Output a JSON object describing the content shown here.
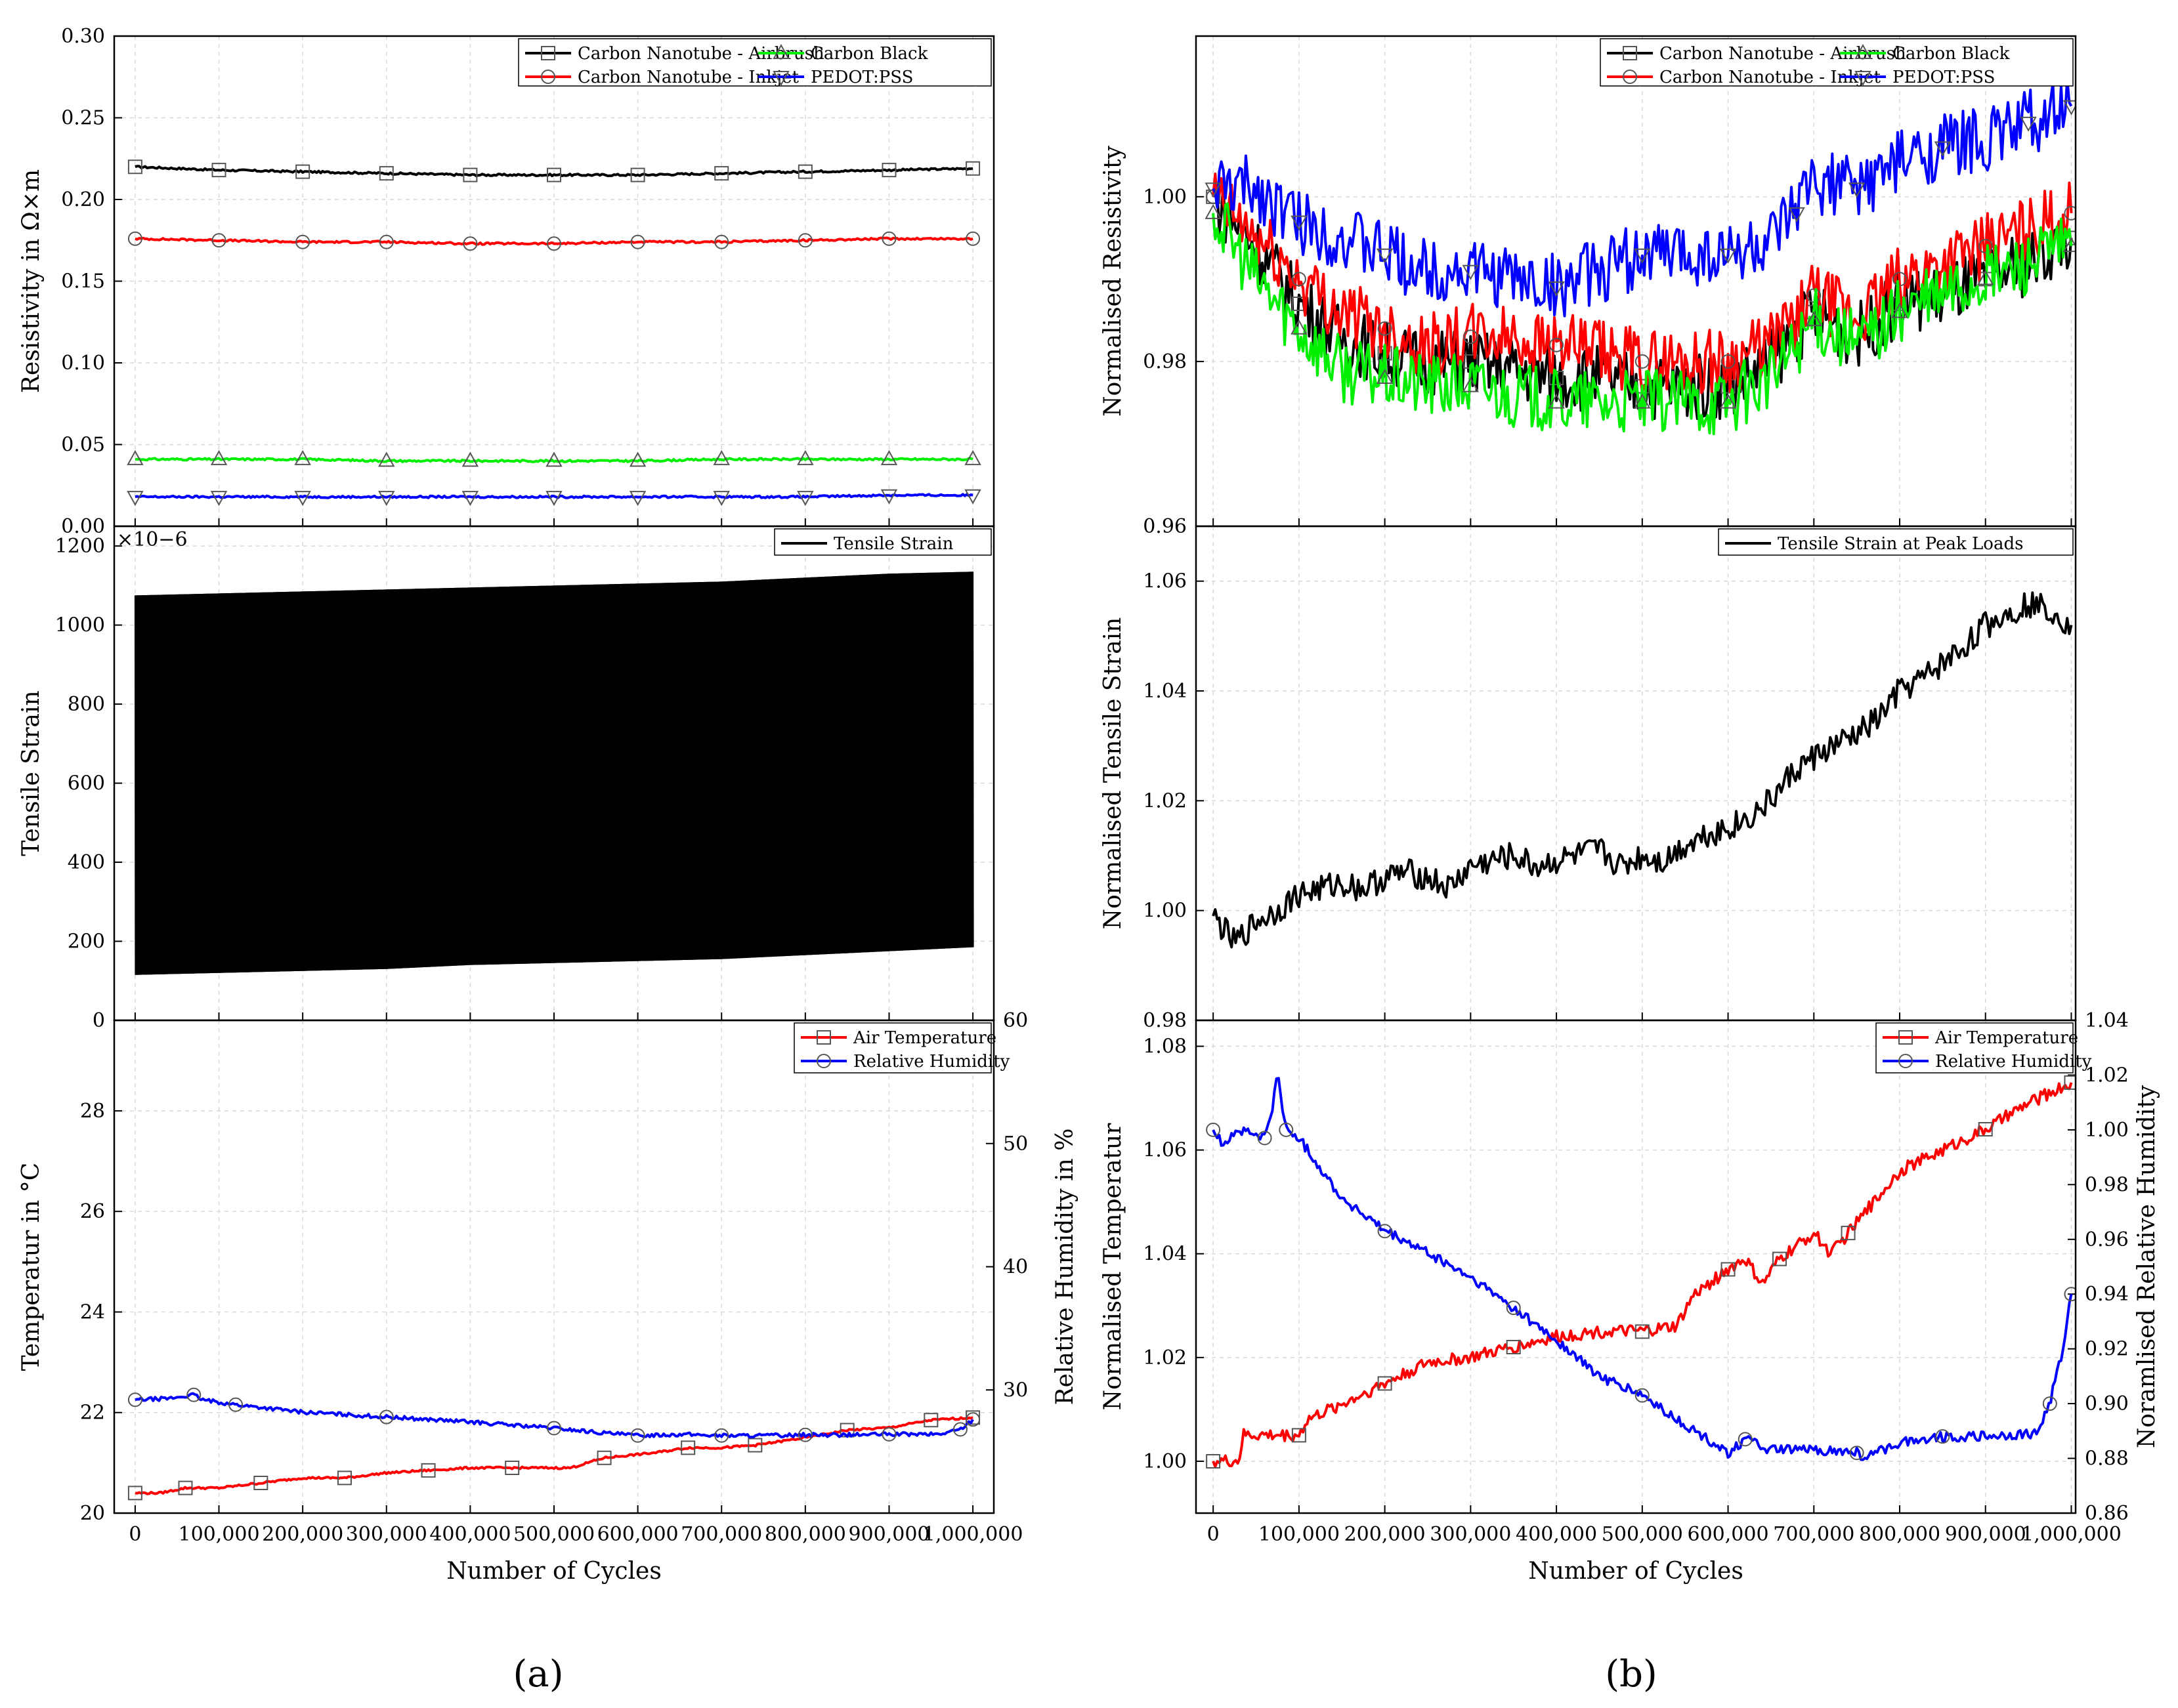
{
  "colors": {
    "black": "#000000",
    "red": "#ff0000",
    "green": "#00ee00",
    "blue": "#0000ff",
    "grid": "#d9d9d9"
  },
  "chart_data": [
    {
      "id": "a1",
      "type": "line",
      "ylabel": "Resistivity in Ω×m",
      "ylim": [
        0,
        0.3
      ],
      "yticks": [
        "0.00",
        "0.05",
        "0.10",
        "0.15",
        "0.20",
        "0.25",
        "0.30"
      ],
      "xlim": [
        -25000,
        1025000
      ],
      "grid": true,
      "legend_position": "top-right",
      "series": [
        {
          "name": "Carbon Nanotube - Airbrush",
          "color": "#000000",
          "marker": "square",
          "x": [
            0,
            100000,
            200000,
            300000,
            400000,
            500000,
            600000,
            700000,
            800000,
            900000,
            1000000
          ],
          "y": [
            0.22,
            0.218,
            0.217,
            0.216,
            0.215,
            0.215,
            0.215,
            0.216,
            0.217,
            0.218,
            0.219
          ]
        },
        {
          "name": "Carbon Nanotube - Inkjet",
          "color": "#ff0000",
          "marker": "circle",
          "x": [
            0,
            100000,
            200000,
            300000,
            400000,
            500000,
            600000,
            700000,
            800000,
            900000,
            1000000
          ],
          "y": [
            0.176,
            0.175,
            0.174,
            0.174,
            0.173,
            0.173,
            0.174,
            0.174,
            0.175,
            0.176,
            0.176
          ]
        },
        {
          "name": "Carbon Black",
          "color": "#00ee00",
          "marker": "triangle-up",
          "x": [
            0,
            100000,
            200000,
            300000,
            400000,
            500000,
            600000,
            700000,
            800000,
            900000,
            1000000
          ],
          "y": [
            0.041,
            0.041,
            0.041,
            0.04,
            0.04,
            0.04,
            0.04,
            0.041,
            0.041,
            0.041,
            0.041
          ]
        },
        {
          "name": "PEDOT:PSS",
          "color": "#0000ff",
          "marker": "triangle-down",
          "x": [
            0,
            100000,
            200000,
            300000,
            400000,
            500000,
            600000,
            700000,
            800000,
            900000,
            1000000
          ],
          "y": [
            0.018,
            0.018,
            0.018,
            0.018,
            0.018,
            0.018,
            0.018,
            0.018,
            0.018,
            0.019,
            0.019
          ]
        }
      ]
    },
    {
      "id": "a2",
      "type": "area",
      "ylabel": "Tensile Strain",
      "multiplier": "×10−6",
      "ylim": [
        0,
        1250
      ],
      "yticks": [
        "0",
        "200",
        "400",
        "600",
        "800",
        "1000",
        "1200"
      ],
      "xlim": [
        -25000,
        1025000
      ],
      "grid": true,
      "legend_position": "top-right",
      "series": [
        {
          "name": "Tensile Strain",
          "color": "#000000",
          "x": [
            0,
            100000,
            200000,
            300000,
            400000,
            500000,
            600000,
            700000,
            800000,
            900000,
            1000000
          ],
          "upper": [
            1075,
            1080,
            1085,
            1090,
            1095,
            1100,
            1105,
            1110,
            1120,
            1130,
            1135
          ],
          "lower": [
            115,
            120,
            125,
            130,
            140,
            145,
            150,
            155,
            165,
            175,
            185
          ]
        }
      ]
    },
    {
      "id": "a3",
      "type": "line",
      "xlabel": "Number of Cycles",
      "ylabel": "Temperatur in °C",
      "ylabel_right": "Relative Humidity in %",
      "ylim": [
        20,
        29.8
      ],
      "yticks": [
        "20",
        "22",
        "24",
        "26",
        "28"
      ],
      "ylim_right": [
        20,
        60
      ],
      "yticks_right": [
        "30",
        "40",
        "50",
        "60"
      ],
      "xlim": [
        -25000,
        1025000
      ],
      "xticks": [
        "0",
        "100,000",
        "200,000",
        "300,000",
        "400,000",
        "500,000",
        "600,000",
        "700,000",
        "800,000",
        "900,000",
        "1,000,000"
      ],
      "grid": true,
      "legend_position": "top-right",
      "series": [
        {
          "name": "Air Temperature",
          "color": "#ff0000",
          "marker": "square",
          "axis": "left",
          "x": [
            0,
            30000,
            60000,
            100000,
            150000,
            200000,
            250000,
            300000,
            350000,
            400000,
            450000,
            520000,
            560000,
            620000,
            660000,
            700000,
            740000,
            800000,
            850000,
            900000,
            950000,
            1000000
          ],
          "y": [
            20.4,
            20.4,
            20.5,
            20.5,
            20.6,
            20.7,
            20.7,
            20.8,
            20.85,
            20.9,
            20.9,
            20.9,
            21.1,
            21.2,
            21.3,
            21.3,
            21.35,
            21.5,
            21.65,
            21.7,
            21.85,
            21.9
          ]
        },
        {
          "name": "Relative Humidity",
          "color": "#0000ff",
          "marker": "circle",
          "axis": "right",
          "x": [
            0,
            40000,
            70000,
            80000,
            120000,
            200000,
            300000,
            400000,
            500000,
            560000,
            600000,
            650000,
            700000,
            750000,
            800000,
            850000,
            900000,
            960000,
            985000,
            1000000
          ],
          "y": [
            29.2,
            29.3,
            29.6,
            29.2,
            28.8,
            28.2,
            27.8,
            27.4,
            26.9,
            26.5,
            26.3,
            26.4,
            26.3,
            26.3,
            26.35,
            26.35,
            26.4,
            26.4,
            26.8,
            27.6
          ]
        }
      ]
    },
    {
      "id": "b1",
      "type": "line",
      "ylabel": "Normalised Resistivity",
      "ylim": [
        0.96,
        1.0195
      ],
      "yticks": [
        "0.96",
        "0.98",
        "1.00"
      ],
      "xlim": [
        -20000,
        1005000
      ],
      "grid": true,
      "legend_position": "top-right",
      "series": [
        {
          "name": "Carbon Nanotube - Airbrush",
          "color": "#000000",
          "marker": "square",
          "x": [
            0,
            50000,
            100000,
            150000,
            200000,
            250000,
            300000,
            350000,
            400000,
            450000,
            500000,
            550000,
            600000,
            650000,
            700000,
            750000,
            800000,
            850000,
            900000,
            950000,
            1000000
          ],
          "y": [
            1.0,
            0.994,
            0.987,
            0.983,
            0.981,
            0.98,
            0.98,
            0.979,
            0.978,
            0.978,
            0.977,
            0.977,
            0.977,
            0.98,
            0.986,
            0.983,
            0.987,
            0.988,
            0.99,
            0.992,
            0.995
          ]
        },
        {
          "name": "Carbon Nanotube - Inkjet",
          "color": "#ff0000",
          "marker": "circle",
          "x": [
            0,
            50000,
            100000,
            150000,
            200000,
            250000,
            300000,
            350000,
            400000,
            450000,
            500000,
            550000,
            600000,
            650000,
            700000,
            750000,
            800000,
            850000,
            900000,
            950000,
            1000000
          ],
          "y": [
            1.0,
            0.995,
            0.99,
            0.986,
            0.984,
            0.982,
            0.983,
            0.983,
            0.982,
            0.981,
            0.98,
            0.98,
            0.98,
            0.982,
            0.988,
            0.985,
            0.99,
            0.992,
            0.994,
            0.996,
            0.998
          ]
        },
        {
          "name": "Carbon Black",
          "color": "#00ee00",
          "marker": "triangle-up",
          "x": [
            0,
            50000,
            100000,
            150000,
            200000,
            250000,
            300000,
            350000,
            400000,
            450000,
            500000,
            550000,
            600000,
            650000,
            700000,
            750000,
            800000,
            850000,
            900000,
            950000,
            1000000
          ],
          "y": [
            0.998,
            0.99,
            0.984,
            0.979,
            0.978,
            0.977,
            0.977,
            0.976,
            0.975,
            0.975,
            0.975,
            0.975,
            0.975,
            0.978,
            0.985,
            0.982,
            0.986,
            0.988,
            0.99,
            0.992,
            0.994
          ]
        },
        {
          "name": "PEDOT:PSS",
          "color": "#0000ff",
          "marker": "triangle-down",
          "x": [
            0,
            50000,
            100000,
            150000,
            200000,
            250000,
            300000,
            350000,
            400000,
            450000,
            500000,
            550000,
            600000,
            650000,
            680000,
            700000,
            750000,
            800000,
            850000,
            900000,
            950000,
            1000000
          ],
          "y": [
            1.001,
            1.001,
            0.997,
            0.995,
            0.993,
            0.991,
            0.991,
            0.99,
            0.989,
            0.991,
            0.993,
            0.993,
            0.993,
            0.994,
            0.998,
            1.002,
            1.001,
            1.004,
            1.006,
            1.007,
            1.009,
            1.011
          ]
        }
      ]
    },
    {
      "id": "b2",
      "type": "line",
      "ylabel": "Normalised Tensile Strain",
      "ylim": [
        0.98,
        1.07
      ],
      "yticks": [
        "0.98",
        "1.00",
        "1.02",
        "1.04",
        "1.06"
      ],
      "xlim": [
        -20000,
        1005000
      ],
      "grid": true,
      "legend_position": "top-right",
      "series": [
        {
          "name": "Tensile Strain at Peak Loads",
          "color": "#000000",
          "x": [
            0,
            25000,
            50000,
            75000,
            100000,
            125000,
            150000,
            175000,
            200000,
            225000,
            250000,
            275000,
            300000,
            325000,
            350000,
            375000,
            400000,
            425000,
            450000,
            475000,
            500000,
            525000,
            550000,
            575000,
            600000,
            625000,
            650000,
            675000,
            700000,
            725000,
            750000,
            775000,
            800000,
            825000,
            850000,
            875000,
            900000,
            925000,
            950000,
            975000,
            1000000
          ],
          "y": [
            0.999,
            0.994,
            0.998,
            1.0,
            1.003,
            1.004,
            1.005,
            1.004,
            1.006,
            1.007,
            1.006,
            1.004,
            1.008,
            1.009,
            1.01,
            1.008,
            1.009,
            1.01,
            1.011,
            1.008,
            1.01,
            1.009,
            1.012,
            1.014,
            1.015,
            1.017,
            1.02,
            1.025,
            1.028,
            1.03,
            1.032,
            1.035,
            1.04,
            1.042,
            1.045,
            1.048,
            1.052,
            1.054,
            1.056,
            1.055,
            1.052
          ]
        }
      ]
    },
    {
      "id": "b3",
      "type": "line",
      "xlabel": "Number of Cycles",
      "ylabel": "Normalised Temperatur",
      "ylabel_right": "Noramlised Relative Humidity",
      "ylim": [
        0.99,
        1.085
      ],
      "yticks": [
        "1.00",
        "1.02",
        "1.04",
        "1.06",
        "1.08"
      ],
      "ylim_right": [
        0.86,
        1.04
      ],
      "yticks_right": [
        "0.86",
        "0.88",
        "0.90",
        "0.92",
        "0.94",
        "0.96",
        "0.98",
        "1.00",
        "1.02",
        "1.04"
      ],
      "xlim": [
        -20000,
        1005000
      ],
      "xticks": [
        "0",
        "100,000",
        "200,000",
        "300,000",
        "400,000",
        "500,000",
        "600,000",
        "700,000",
        "800,000",
        "900,000",
        "1,000,000"
      ],
      "grid": true,
      "legend_position": "top-right",
      "series": [
        {
          "name": "Air Temperature",
          "color": "#ff0000",
          "marker": "square",
          "axis": "left",
          "x": [
            0,
            30000,
            35000,
            100000,
            110000,
            150000,
            200000,
            250000,
            300000,
            350000,
            400000,
            450000,
            500000,
            540000,
            560000,
            600000,
            620000,
            640000,
            660000,
            700000,
            720000,
            740000,
            800000,
            850000,
            900000,
            950000,
            1000000
          ],
          "y": [
            1.0,
            1.0,
            1.005,
            1.005,
            1.008,
            1.011,
            1.015,
            1.019,
            1.02,
            1.022,
            1.024,
            1.025,
            1.025,
            1.026,
            1.032,
            1.037,
            1.039,
            1.034,
            1.039,
            1.044,
            1.04,
            1.044,
            1.056,
            1.06,
            1.064,
            1.069,
            1.073
          ]
        },
        {
          "name": "Relative Humidity",
          "color": "#0000ff",
          "marker": "circle",
          "axis": "right",
          "x": [
            0,
            10000,
            30000,
            60000,
            70000,
            75000,
            85000,
            100000,
            150000,
            200000,
            250000,
            300000,
            350000,
            400000,
            450000,
            500000,
            550000,
            600000,
            620000,
            650000,
            700000,
            750000,
            760000,
            800000,
            850000,
            900000,
            960000,
            975000,
            990000,
            1000000
          ],
          "y": [
            1.0,
            0.995,
            1.0,
            0.997,
            1.01,
            1.02,
            1.0,
            0.997,
            0.975,
            0.963,
            0.955,
            0.946,
            0.935,
            0.923,
            0.91,
            0.903,
            0.892,
            0.882,
            0.887,
            0.883,
            0.883,
            0.882,
            0.88,
            0.886,
            0.888,
            0.888,
            0.889,
            0.9,
            0.92,
            0.94
          ]
        }
      ]
    }
  ],
  "captions": {
    "a": "(a)",
    "b": "(b)"
  }
}
